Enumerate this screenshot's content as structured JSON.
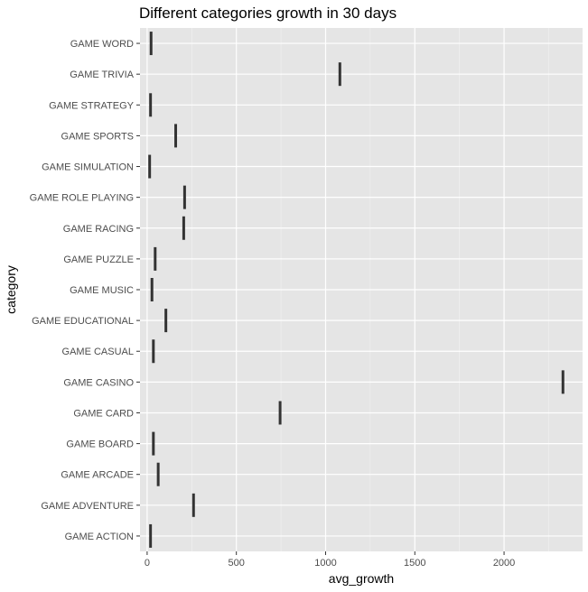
{
  "chart_data": {
    "type": "boxplot",
    "orientation": "horizontal",
    "title": "Different categories growth in 30 days",
    "xlabel": "avg_growth",
    "ylabel": "category",
    "xlim": [
      -40,
      2440
    ],
    "x_ticks": [
      0,
      500,
      1000,
      1500,
      2000
    ],
    "x_tick_labels": [
      "0",
      "500",
      "1000",
      "1500",
      "2000"
    ],
    "grid": true,
    "legend": "none",
    "colors": {
      "panel": "#e5e5e5",
      "grid_major": "#ffffff",
      "grid_minor": "#f2f2f2",
      "mark": "#333333"
    },
    "categories": [
      "GAME WORD",
      "GAME TRIVIA",
      "GAME STRATEGY",
      "GAME SPORTS",
      "GAME SIMULATION",
      "GAME ROLE PLAYING",
      "GAME RACING",
      "GAME PUZZLE",
      "GAME MUSIC",
      "GAME EDUCATIONAL",
      "GAME CASUAL",
      "GAME CASINO",
      "GAME CARD",
      "GAME BOARD",
      "GAME ARCADE",
      "GAME ADVENTURE",
      "GAME ACTION"
    ],
    "values": [
      22,
      1080,
      19,
      160,
      14,
      210,
      205,
      45,
      27,
      105,
      35,
      2330,
      745,
      35,
      62,
      260,
      19
    ]
  }
}
